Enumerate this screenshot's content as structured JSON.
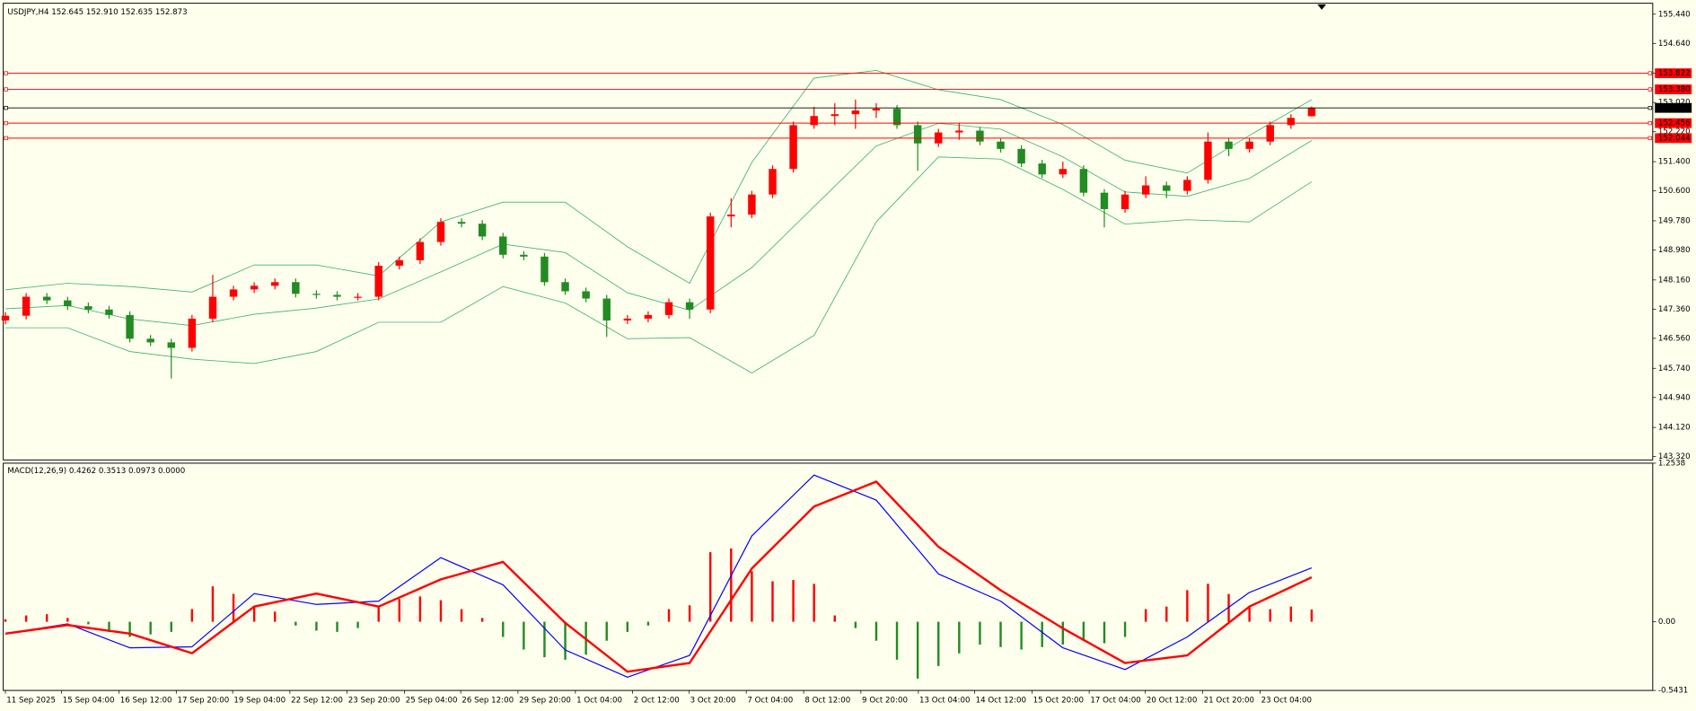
{
  "chart_data": [
    {
      "type": "candlestick",
      "title": "USDJPY,H4  152.645 152.910 152.635 152.873",
      "open": [
        147.05,
        147.18,
        147.7,
        147.6,
        147.44,
        147.35,
        147.2,
        146.55,
        146.45,
        146.3,
        147.1,
        147.7,
        147.9,
        148.0,
        148.1,
        147.78,
        147.75,
        147.7,
        147.7,
        148.55,
        148.7,
        149.2,
        149.75,
        149.7,
        149.35,
        148.85,
        148.8,
        148.1,
        147.85,
        147.65,
        147.05,
        147.1,
        147.2,
        147.55,
        147.35,
        149.9,
        149.95,
        150.5,
        151.2,
        152.4,
        152.65,
        152.7,
        152.8,
        152.85,
        152.4,
        151.9,
        152.2,
        152.25,
        151.95,
        151.75,
        151.35,
        151.05,
        151.2,
        150.55,
        150.1,
        150.5,
        150.75,
        150.6,
        150.9,
        151.95,
        151.75,
        151.95,
        152.4,
        152.645
      ],
      "high": [
        147.28,
        147.8,
        147.8,
        147.7,
        147.54,
        147.45,
        147.3,
        146.65,
        146.55,
        147.2,
        148.3,
        148.0,
        148.1,
        148.2,
        148.2,
        147.88,
        147.85,
        147.8,
        148.65,
        148.8,
        149.3,
        149.85,
        149.85,
        149.8,
        149.45,
        148.95,
        148.9,
        148.2,
        147.95,
        147.75,
        147.2,
        147.3,
        147.65,
        147.65,
        150.0,
        150.4,
        150.6,
        151.3,
        152.5,
        152.9,
        153.0,
        153.1,
        153.0,
        152.95,
        152.5,
        152.3,
        152.45,
        152.35,
        152.05,
        151.85,
        151.45,
        151.4,
        151.3,
        150.65,
        150.6,
        151.0,
        150.85,
        151.0,
        152.2,
        152.05,
        152.05,
        152.5,
        152.7,
        152.91
      ],
      "low": [
        146.95,
        147.08,
        147.5,
        147.34,
        147.25,
        147.1,
        146.45,
        146.35,
        145.46,
        146.2,
        147.0,
        147.6,
        147.8,
        147.9,
        147.68,
        147.65,
        147.6,
        147.6,
        147.6,
        148.45,
        148.6,
        149.1,
        149.6,
        149.25,
        148.75,
        148.7,
        148.0,
        147.75,
        147.55,
        146.6,
        146.95,
        147.0,
        147.1,
        147.1,
        147.25,
        149.6,
        149.85,
        150.4,
        151.1,
        152.3,
        152.4,
        152.3,
        152.6,
        152.3,
        151.15,
        151.8,
        152.0,
        151.85,
        151.65,
        151.25,
        150.95,
        150.95,
        150.45,
        149.6,
        150.0,
        150.4,
        150.4,
        150.5,
        150.8,
        151.55,
        151.65,
        151.85,
        152.3,
        152.635
      ],
      "close": [
        147.18,
        147.7,
        147.6,
        147.44,
        147.35,
        147.2,
        146.55,
        146.45,
        146.3,
        147.1,
        147.7,
        147.9,
        148.0,
        148.1,
        147.78,
        147.75,
        147.7,
        147.7,
        148.55,
        148.7,
        149.2,
        149.75,
        149.7,
        149.35,
        148.85,
        148.8,
        148.1,
        147.85,
        147.65,
        147.05,
        147.1,
        147.2,
        147.55,
        147.35,
        149.9,
        149.95,
        150.5,
        151.2,
        152.4,
        152.65,
        152.7,
        152.8,
        152.85,
        152.4,
        151.9,
        152.2,
        152.25,
        151.95,
        151.75,
        151.35,
        151.05,
        151.2,
        150.55,
        150.1,
        150.5,
        150.75,
        150.6,
        150.9,
        151.95,
        151.75,
        151.95,
        152.4,
        152.6,
        152.873
      ],
      "up_color": "#ff0000",
      "down_color": "#228b22",
      "band_x": [
        0,
        3,
        6,
        9,
        12,
        15,
        18,
        21,
        24,
        27,
        30,
        33,
        36,
        39,
        42,
        45,
        48,
        51,
        54,
        57,
        60,
        63
      ],
      "bands": [
        {
          "color": "#3cb371",
          "values": [
            147.89,
            148.07,
            147.98,
            147.83,
            148.57,
            148.57,
            148.27,
            149.75,
            150.29,
            150.29,
            149.07,
            148.07,
            151.38,
            153.69,
            153.9,
            153.37,
            153.1,
            152.42,
            151.44,
            151.09,
            152.12,
            153.1
          ]
        },
        {
          "color": "#3cb371",
          "values": [
            147.37,
            147.46,
            147.09,
            146.91,
            147.22,
            147.39,
            147.64,
            148.38,
            149.14,
            148.91,
            147.81,
            147.33,
            148.5,
            150.17,
            151.83,
            152.45,
            152.29,
            151.53,
            150.57,
            150.45,
            150.94,
            151.98
          ]
        },
        {
          "color": "#3cb371",
          "values": [
            146.85,
            146.85,
            146.2,
            145.99,
            145.87,
            146.2,
            147.0,
            147.0,
            147.98,
            147.53,
            146.55,
            146.58,
            145.61,
            146.64,
            149.75,
            151.53,
            151.47,
            150.64,
            149.69,
            149.81,
            149.75,
            150.85
          ]
        }
      ],
      "levels": [
        {
          "value": 153.822,
          "color": "#ff0000"
        },
        {
          "value": 153.38,
          "label": "153.380",
          "color": "#ff0000"
        },
        {
          "value": 152.873,
          "color": "#000000"
        },
        {
          "value": 152.456,
          "color": "#ff0000"
        },
        {
          "value": 152.044,
          "color": "#ff0000"
        }
      ],
      "xlim": [
        0,
        79.45
      ],
      "xticks": [
        {
          "value": 0,
          "label": "11 Sep 2025"
        },
        {
          "value": 2.71,
          "label": "15 Sep 04:00"
        },
        {
          "value": 5.48,
          "label": "16 Sep 12:00"
        },
        {
          "value": 8.24,
          "label": "17 Sep 20:00"
        },
        {
          "value": 10.96,
          "label": "19 Sep 04:00"
        },
        {
          "value": 13.72,
          "label": "22 Sep 12:00"
        },
        {
          "value": 16.48,
          "label": "23 Sep 20:00"
        },
        {
          "value": 19.25,
          "label": "25 Sep 04:00"
        },
        {
          "value": 21.96,
          "label": "26 Sep 12:00"
        },
        {
          "value": 24.72,
          "label": "29 Sep 20:00"
        },
        {
          "value": 27.49,
          "label": "1 Oct 04:00"
        },
        {
          "value": 30.25,
          "label": "2 Oct 12:00"
        },
        {
          "value": 32.97,
          "label": "3 Oct 20:00"
        },
        {
          "value": 35.73,
          "label": "7 Oct 04:00"
        },
        {
          "value": 38.5,
          "label": "8 Oct 12:00"
        },
        {
          "value": 41.26,
          "label": "9 Oct 20:00"
        },
        {
          "value": 44.03,
          "label": "13 Oct 04:00"
        },
        {
          "value": 46.74,
          "label": "14 Oct 12:00"
        },
        {
          "value": 49.51,
          "label": "15 Oct 20:00"
        },
        {
          "value": 52.27,
          "label": "17 Oct 04:00"
        },
        {
          "value": 54.98,
          "label": "20 Oct 12:00"
        },
        {
          "value": 57.74,
          "label": "21 Oct 20:00"
        },
        {
          "value": 60.51,
          "label": "23 Oct 04:00"
        }
      ],
      "ylim": [
        143.23,
        155.68
      ],
      "yticks": [
        {
          "value": 155.44,
          "label": "155.440"
        },
        {
          "value": 154.64,
          "label": "154.640"
        },
        {
          "value": 153.82,
          "label": "153.820"
        },
        {
          "value": 153.02,
          "label": "153.020"
        },
        {
          "value": 152.22,
          "label": "152.220"
        },
        {
          "value": 151.4,
          "label": "151.400"
        },
        {
          "value": 150.6,
          "label": "150.600"
        },
        {
          "value": 149.78,
          "label": "149.780"
        },
        {
          "value": 148.98,
          "label": "148.980"
        },
        {
          "value": 148.16,
          "label": "148.160"
        },
        {
          "value": 147.36,
          "label": "147.360"
        },
        {
          "value": 146.56,
          "label": "146.560"
        },
        {
          "value": 145.74,
          "label": "145.740"
        },
        {
          "value": 144.94,
          "label": "144.940"
        },
        {
          "value": 144.12,
          "label": "144.120"
        },
        {
          "value": 143.32,
          "label": "143.320"
        }
      ]
    },
    {
      "type": "macd",
      "title": "MACD(12,26,9) 0.4262 0.3513 0.0973 0.0000",
      "histogram": [
        0.02,
        0.05,
        0.06,
        0.03,
        -0.02,
        -0.08,
        -0.12,
        -0.1,
        -0.08,
        0.1,
        0.28,
        0.22,
        0.12,
        0.08,
        -0.03,
        -0.07,
        -0.08,
        -0.05,
        0.12,
        0.18,
        0.2,
        0.17,
        0.1,
        0.03,
        -0.12,
        -0.22,
        -0.28,
        -0.3,
        -0.26,
        -0.15,
        -0.08,
        -0.03,
        0.1,
        0.13,
        0.55,
        0.58,
        0.4,
        0.32,
        0.33,
        0.3,
        0.05,
        -0.05,
        -0.15,
        -0.3,
        -0.45,
        -0.35,
        -0.25,
        -0.18,
        -0.2,
        -0.22,
        -0.2,
        -0.18,
        -0.15,
        -0.17,
        -0.12,
        0.1,
        0.12,
        0.25,
        0.3,
        0.22,
        0.12,
        0.1,
        0.12,
        0.0973
      ],
      "up_color": "#ff0000",
      "down_color": "#228b22",
      "line_x": [
        0,
        3,
        6,
        9,
        12,
        15,
        18,
        21,
        24,
        27,
        30,
        33,
        36,
        39,
        42,
        45,
        48,
        51,
        54,
        57,
        60,
        63
      ],
      "series": [
        {
          "color": "#0000ff",
          "values": [
            -0.094,
            -0.017,
            -0.206,
            -0.198,
            0.223,
            0.137,
            0.163,
            0.507,
            0.292,
            -0.223,
            -0.438,
            -0.266,
            0.679,
            1.16,
            0.962,
            0.378,
            0.163,
            -0.206,
            -0.378,
            -0.12,
            0.232,
            0.4262
          ]
        },
        {
          "color": "#ff0000",
          "values": [
            -0.094,
            -0.026,
            -0.094,
            -0.249,
            0.12,
            0.223,
            0.12,
            0.335,
            0.473,
            -0.009,
            -0.395,
            -0.326,
            0.421,
            0.911,
            1.108,
            0.593,
            0.249,
            -0.052,
            -0.326,
            -0.266,
            0.12,
            0.3513
          ]
        }
      ],
      "xlim": [
        0,
        79.45
      ],
      "ylim": [
        -0.5431,
        1.2538
      ],
      "yticks": [
        1.2538,
        {
          "value": 0,
          "label": "0.00"
        },
        -0.5431
      ]
    }
  ]
}
